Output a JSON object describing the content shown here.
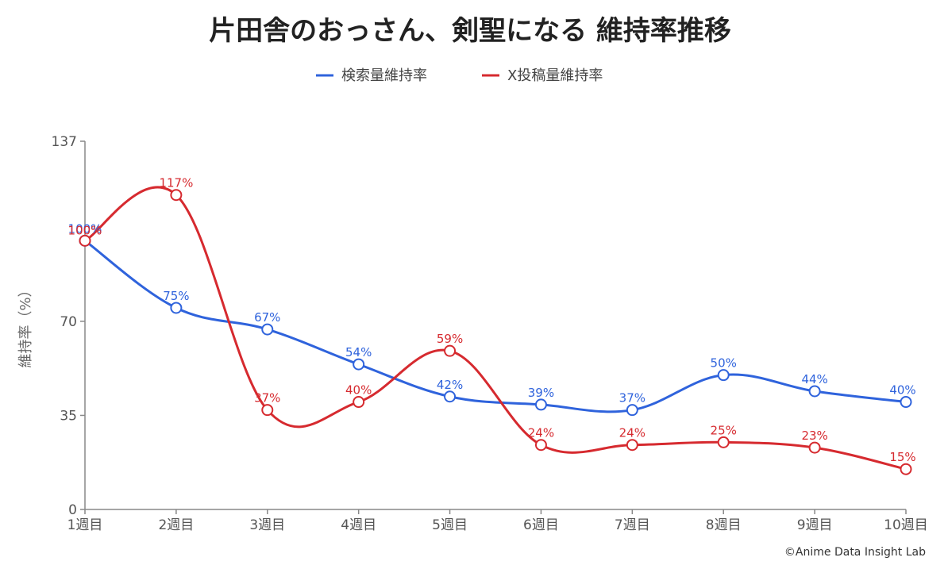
{
  "chart_data": {
    "type": "line",
    "title": "片田舎のおっさん、剣聖になる 維持率推移",
    "ylabel": "維持率（%）",
    "xlabel": "",
    "categories": [
      "1週目",
      "2週目",
      "3週目",
      "4週目",
      "5週目",
      "6週目",
      "7週目",
      "8週目",
      "9週目",
      "10週目"
    ],
    "ylim": [
      0,
      137
    ],
    "yticks": [
      0,
      35,
      70,
      137
    ],
    "grid": false,
    "legend_position": "top-center",
    "series": [
      {
        "name": "検索量維持率",
        "color": "#2f63dc",
        "values": [
          100,
          75,
          67,
          54,
          42,
          39,
          37,
          50,
          44,
          40
        ],
        "labels": [
          "100%",
          "75%",
          "67%",
          "54%",
          "42%",
          "39%",
          "37%",
          "50%",
          "44%",
          "40%"
        ]
      },
      {
        "name": "X投稿量維持率",
        "color": "#d62a2f",
        "values": [
          100,
          117,
          37,
          40,
          59,
          24,
          24,
          25,
          23,
          15
        ],
        "labels": [
          "100%",
          "117%",
          "37%",
          "40%",
          "59%",
          "24%",
          "24%",
          "25%",
          "23%",
          "15%"
        ]
      }
    ]
  },
  "credit": "©Anime Data Insight Lab"
}
